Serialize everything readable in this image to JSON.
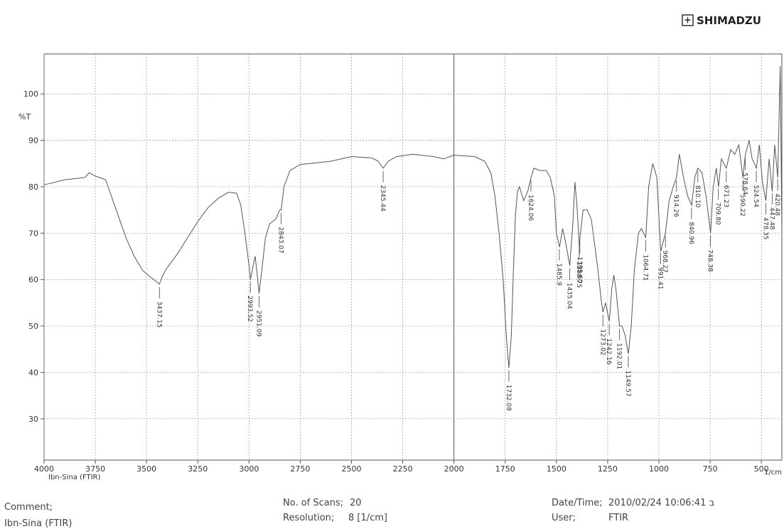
{
  "brand": "SHIMADZU",
  "chart_data": {
    "type": "line",
    "ylabel": "%T",
    "xlabel": "1/cm",
    "sample_label": "Ibn-Sina (FTIR)",
    "color": "#555555",
    "grid": true,
    "divider": 2000,
    "xlim": [
      4000,
      400
    ],
    "ylim": [
      21.1,
      108.6
    ],
    "xticks": [
      4000,
      3750,
      3500,
      3250,
      3000,
      2750,
      2500,
      2250,
      2000,
      1750,
      1500,
      1250,
      1000,
      750,
      500
    ],
    "yticks": [
      30,
      40,
      50,
      60,
      70,
      80,
      90,
      100
    ],
    "x": [
      4000,
      3900,
      3800,
      3780,
      3750,
      3700,
      3680,
      3640,
      3600,
      3560,
      3520,
      3480,
      3450,
      3437,
      3420,
      3400,
      3350,
      3300,
      3250,
      3200,
      3150,
      3100,
      3060,
      3040,
      3020,
      3000,
      2993,
      2980,
      2970,
      2960,
      2951,
      2940,
      2920,
      2900,
      2870,
      2850,
      2843,
      2830,
      2800,
      2750,
      2700,
      2600,
      2500,
      2400,
      2370,
      2345,
      2320,
      2280,
      2200,
      2100,
      2050,
      2000,
      1900,
      1850,
      1820,
      1800,
      1780,
      1760,
      1745,
      1732,
      1720,
      1710,
      1700,
      1690,
      1680,
      1660,
      1640,
      1624,
      1610,
      1580,
      1550,
      1530,
      1510,
      1500,
      1485,
      1470,
      1455,
      1435,
      1420,
      1410,
      1400,
      1388,
      1385,
      1370,
      1350,
      1330,
      1300,
      1280,
      1273,
      1260,
      1242,
      1230,
      1220,
      1210,
      1192,
      1180,
      1165,
      1149,
      1135,
      1120,
      1100,
      1085,
      1064,
      1050,
      1030,
      1010,
      991,
      980,
      968,
      950,
      930,
      914,
      900,
      880,
      860,
      840,
      825,
      810,
      790,
      770,
      748,
      735,
      720,
      709,
      695,
      671,
      650,
      630,
      610,
      590,
      578,
      560,
      545,
      524,
      510,
      495,
      478,
      462,
      447,
      435,
      420,
      408,
      400
    ],
    "values": [
      80.4,
      81.5,
      82,
      83,
      82.3,
      81.5,
      79,
      74,
      69,
      65,
      62,
      60.5,
      59.5,
      59,
      61,
      62.5,
      65.5,
      69,
      72.5,
      75.5,
      77.5,
      78.8,
      78.6,
      76,
      70,
      63,
      60,
      63,
      65,
      61,
      57,
      61,
      69,
      72,
      73,
      75,
      75,
      80,
      83.5,
      84.8,
      85,
      85.5,
      86.5,
      86.2,
      85.5,
      84,
      85.5,
      86.5,
      87,
      86.5,
      86,
      86.8,
      86.5,
      85.5,
      83,
      78,
      70,
      60,
      48,
      41,
      48,
      62,
      74,
      79,
      80,
      77,
      79,
      82,
      84,
      83.5,
      83.5,
      82,
      78,
      70,
      67,
      71,
      68,
      63,
      72,
      81,
      76,
      67,
      69,
      75,
      75,
      73,
      63,
      55,
      53,
      55,
      51,
      58,
      61,
      58,
      50,
      50,
      48,
      44,
      50,
      62,
      70,
      71,
      69,
      80,
      85,
      82,
      66,
      68,
      70,
      77,
      80,
      82,
      87,
      82,
      78,
      76,
      82,
      84,
      83,
      78,
      70,
      80,
      84,
      80,
      86,
      84,
      88,
      87,
      89,
      82,
      87,
      90,
      86,
      84,
      89,
      81,
      77,
      86,
      79,
      89,
      82,
      106,
      70
    ],
    "peaks": [
      3437.15,
      2993.52,
      2951.09,
      2843.07,
      2345.44,
      1732.08,
      1624.06,
      1485.9,
      1435.04,
      1388.75,
      {
        "value": 1385.6,
        "label": "1385.60"
      },
      1273.02,
      1242.16,
      1192.01,
      1149.57,
      1064.71,
      991.41,
      968.27,
      914.26,
      840.96,
      {
        "value": 810.1,
        "label": "810.10"
      },
      748.38,
      {
        "value": 709.8,
        "label": "709.80"
      },
      671.23,
      590.22,
      578.64,
      524.54,
      478.35,
      447.48,
      420.48
    ]
  },
  "footer": {
    "comment_label": "Comment;",
    "comment": "Ibn-Sina (FTIR)",
    "scans_label": "No. of Scans;",
    "scans": 20,
    "resolution_label": "Resolution;",
    "resolution": "8 [1/cm]",
    "datetime_label": "Date/Time;",
    "datetime": "2010/02/24 10:06:41 ב",
    "user_label": "User;",
    "user": "FTIR"
  }
}
